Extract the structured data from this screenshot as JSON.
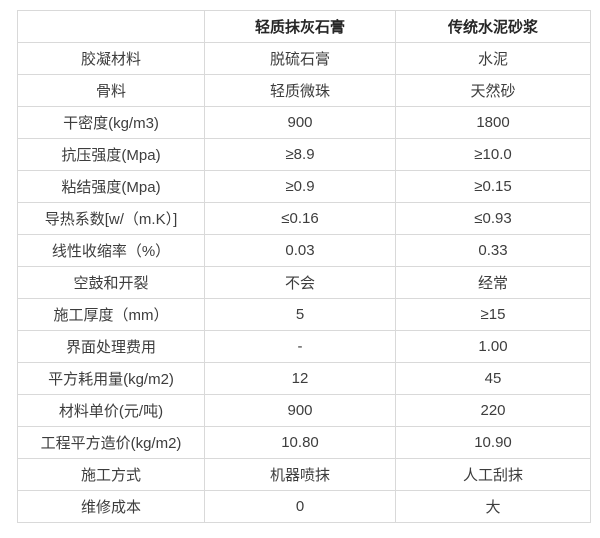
{
  "chart_data": {
    "type": "table",
    "columns": [
      "",
      "轻质抹灰石膏",
      "传统水泥砂浆"
    ],
    "rows": [
      [
        "胶凝材料",
        "脱硫石膏",
        "水泥"
      ],
      [
        "骨料",
        "轻质微珠",
        "天然砂"
      ],
      [
        "干密度(kg/m3)",
        "900",
        "1800"
      ],
      [
        "抗压强度(Mpa)",
        "≥8.9",
        "≥10.0"
      ],
      [
        "粘结强度(Mpa)",
        "≥0.9",
        "≥0.15"
      ],
      [
        "导热系数[w/（m.K）]",
        "≤0.16",
        "≤0.93"
      ],
      [
        "线性收缩率（%）",
        "0.03",
        "0.33"
      ],
      [
        "空鼓和开裂",
        "不会",
        "经常"
      ],
      [
        "施工厚度（mm）",
        "5",
        "≥15"
      ],
      [
        "界面处理费用",
        "-",
        "1.00"
      ],
      [
        "平方耗用量(kg/m2)",
        "12",
        "45"
      ],
      [
        "材料单价(元/吨)",
        "900",
        "220"
      ],
      [
        "工程平方造价(kg/m2)",
        "10.80",
        "10.90"
      ],
      [
        "施工方式",
        "机器喷抹",
        "人工刮抹"
      ],
      [
        "维修成本",
        "0",
        "大"
      ]
    ],
    "colors": {
      "border": "#d9d9d9",
      "header_text": "#262626",
      "body_text": "#3d3d3d",
      "background": "#ffffff"
    },
    "layout": {
      "grid": "full",
      "text_align": "center",
      "header_row_bold": true
    }
  }
}
